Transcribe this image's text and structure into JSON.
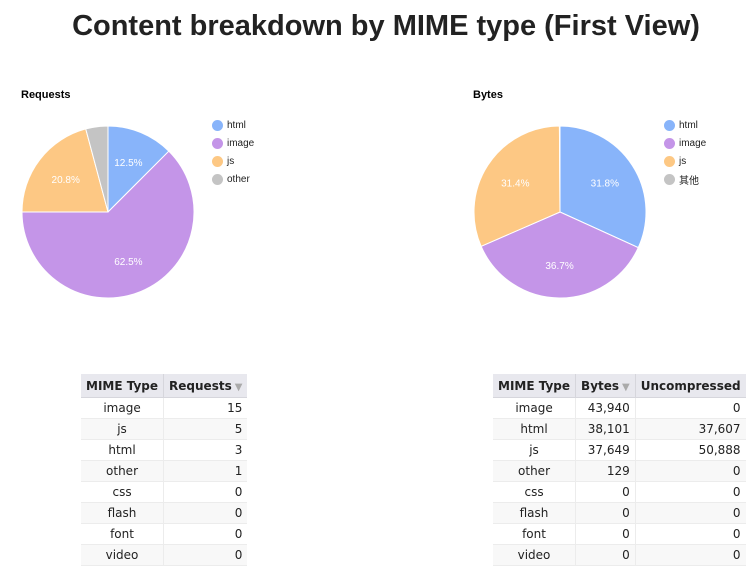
{
  "title": "Content breakdown by MIME type (First View)",
  "colors": {
    "html": "#88b4fa",
    "image": "#c495e8",
    "js": "#fdc884",
    "other": "#c4c4c4"
  },
  "chart_data": [
    {
      "type": "pie",
      "title": "Requests",
      "legend_position": "right",
      "slices": [
        {
          "label": "html",
          "value": 3,
          "percent_label": "12.5%",
          "color": "#88b4fa"
        },
        {
          "label": "image",
          "value": 15,
          "percent_label": "62.5%",
          "color": "#c495e8"
        },
        {
          "label": "js",
          "value": 5,
          "percent_label": "20.8%",
          "color": "#fdc884"
        },
        {
          "label": "other",
          "value": 1,
          "percent_label": "",
          "color": "#c4c4c4"
        }
      ]
    },
    {
      "type": "pie",
      "title": "Bytes",
      "legend_position": "right",
      "slices": [
        {
          "label": "html",
          "value": 38101,
          "percent_label": "31.8%",
          "color": "#88b4fa"
        },
        {
          "label": "image",
          "value": 43940,
          "percent_label": "36.7%",
          "color": "#c495e8"
        },
        {
          "label": "js",
          "value": 37649,
          "percent_label": "31.4%",
          "color": "#fdc884"
        },
        {
          "label": "其他",
          "value": 129,
          "percent_label": "",
          "color": "#c4c4c4"
        }
      ]
    },
    {
      "type": "table",
      "columns": [
        "MIME Type",
        "Requests"
      ],
      "sort_indicator": "▼",
      "rows": [
        [
          "image",
          "15"
        ],
        [
          "js",
          "5"
        ],
        [
          "html",
          "3"
        ],
        [
          "other",
          "1"
        ],
        [
          "css",
          "0"
        ],
        [
          "flash",
          "0"
        ],
        [
          "font",
          "0"
        ],
        [
          "video",
          "0"
        ]
      ]
    },
    {
      "type": "table",
      "columns": [
        "MIME Type",
        "Bytes",
        "Uncompressed"
      ],
      "sort_indicator": "▼",
      "rows": [
        [
          "image",
          "43,940",
          "0"
        ],
        [
          "html",
          "38,101",
          "37,607"
        ],
        [
          "js",
          "37,649",
          "50,888"
        ],
        [
          "other",
          "129",
          "0"
        ],
        [
          "css",
          "0",
          "0"
        ],
        [
          "flash",
          "0",
          "0"
        ],
        [
          "font",
          "0",
          "0"
        ],
        [
          "video",
          "0",
          "0"
        ]
      ]
    }
  ]
}
